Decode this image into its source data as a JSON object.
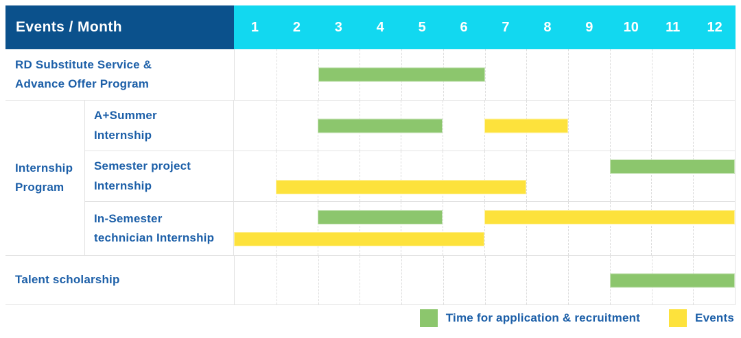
{
  "header": {
    "title": "Events / Month"
  },
  "colors": {
    "header_bg": "#0b518c",
    "months_bg": "#12d8f0",
    "label_text": "#1c5fa8",
    "application": "#8cc66d",
    "event": "#fde23c"
  },
  "group_label": "Internship Program",
  "chart_data": {
    "type": "gantt",
    "title": "Events / Month",
    "x_unit": "month",
    "x_range": [
      1,
      12
    ],
    "grid": true,
    "months": [
      "1",
      "2",
      "3",
      "4",
      "5",
      "6",
      "7",
      "8",
      "9",
      "10",
      "11",
      "12"
    ],
    "rows": [
      {
        "group": "",
        "label": "RD Substitute Service &\nAdvance Offer Program",
        "bars": [
          {
            "type": "application",
            "start_month": 3,
            "end_month": 6,
            "lane": 0
          }
        ]
      },
      {
        "group": "Internship Program",
        "label": "A+Summer\nInternship",
        "bars": [
          {
            "type": "application",
            "start_month": 3,
            "end_month": 5,
            "lane": 0
          },
          {
            "type": "event",
            "start_month": 7,
            "end_month": 8,
            "lane": 0
          }
        ]
      },
      {
        "group": "Internship Program",
        "label": "Semester project\nInternship",
        "bars": [
          {
            "type": "application",
            "start_month": 10,
            "end_month": 12,
            "lane": 0
          },
          {
            "type": "event",
            "start_month": 2,
            "end_month": 7,
            "lane": 1
          }
        ]
      },
      {
        "group": "Internship Program",
        "label": "In-Semester\ntechnician Internship",
        "bars": [
          {
            "type": "application",
            "start_month": 3,
            "end_month": 5,
            "lane": 0
          },
          {
            "type": "event",
            "start_month": 7,
            "end_month": 12,
            "lane": 0
          },
          {
            "type": "event",
            "start_month": 1,
            "end_month": 6,
            "lane": 1
          }
        ]
      },
      {
        "group": "",
        "label": "Talent scholarship",
        "bars": [
          {
            "type": "application",
            "start_month": 10,
            "end_month": 12,
            "lane": 0
          }
        ]
      }
    ],
    "legend": [
      {
        "type": "application",
        "label": "Time for application & recruitment",
        "color": "#8cc66d"
      },
      {
        "type": "event",
        "label": "Events",
        "color": "#fde23c"
      }
    ],
    "legend_position": "bottom-right"
  }
}
